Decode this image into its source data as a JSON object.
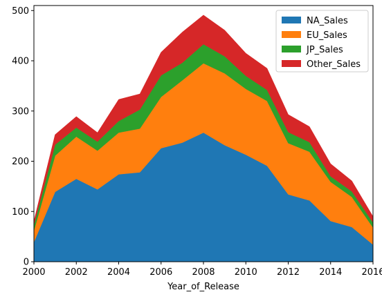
{
  "chart_data": {
    "type": "area",
    "stacked": true,
    "xlabel": "Year_of_Release",
    "ylabel": "",
    "title": "",
    "xlim": [
      2000,
      2016
    ],
    "ylim": [
      0,
      510
    ],
    "xticks": [
      2000,
      2002,
      2004,
      2006,
      2008,
      2010,
      2012,
      2014,
      2016
    ],
    "yticks": [
      0,
      100,
      200,
      300,
      400,
      500
    ],
    "legend_position": "top-right",
    "x": [
      2000,
      2001,
      2002,
      2003,
      2004,
      2005,
      2006,
      2007,
      2008,
      2009,
      2010,
      2011,
      2012,
      2013,
      2014,
      2015,
      2016
    ],
    "series": [
      {
        "name": "NA_Sales",
        "color": "#1f77b4",
        "values": [
          39,
          139,
          165,
          144,
          174,
          178,
          226,
          237,
          257,
          232,
          213,
          191,
          134,
          122,
          81,
          69,
          34
        ]
      },
      {
        "name": "EU_Sales",
        "color": "#ff7f0e",
        "values": [
          23,
          72,
          84,
          77,
          83,
          87,
          102,
          124,
          138,
          143,
          131,
          129,
          102,
          97,
          78,
          60,
          34
        ]
      },
      {
        "name": "JP_Sales",
        "color": "#2ca02c",
        "values": [
          11,
          22,
          18,
          18,
          23,
          38,
          43,
          35,
          38,
          34,
          26,
          22,
          22,
          19,
          11,
          11,
          10
        ]
      },
      {
        "name": "Other_Sales",
        "color": "#d62728",
        "values": [
          8,
          20,
          22,
          18,
          43,
          31,
          46,
          61,
          58,
          52,
          45,
          43,
          35,
          31,
          25,
          21,
          12
        ]
      }
    ]
  }
}
